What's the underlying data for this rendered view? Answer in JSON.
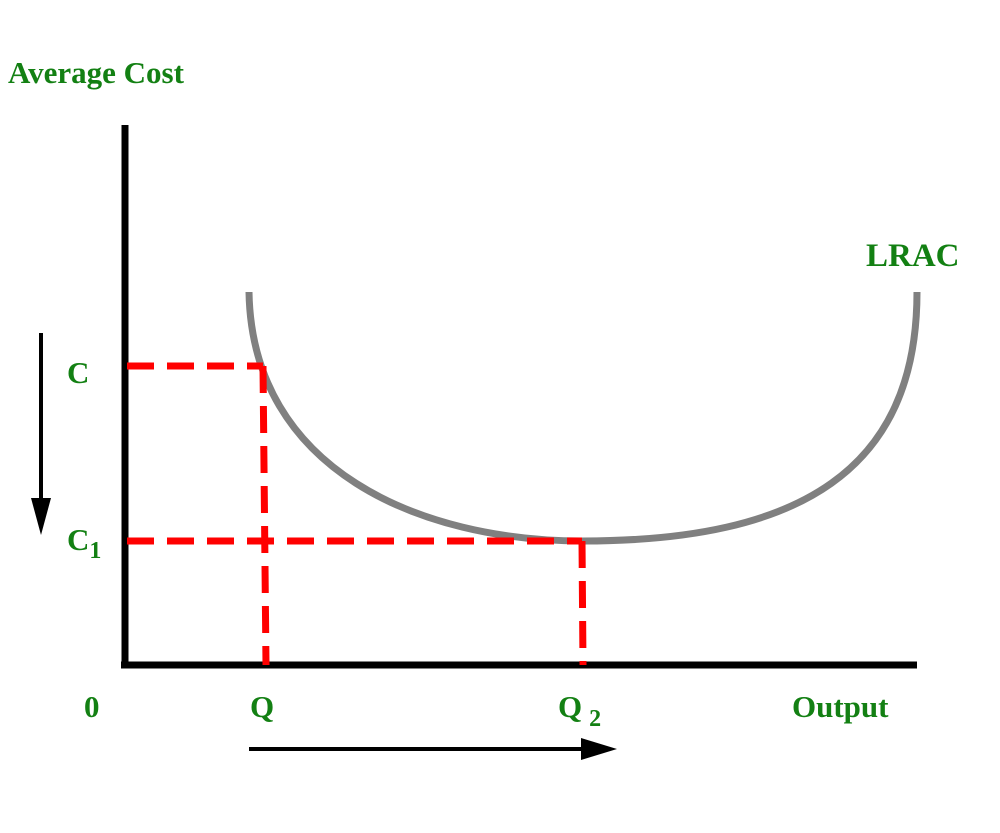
{
  "labels": {
    "y_axis": "Average Cost",
    "x_axis": "Output",
    "origin": "0",
    "curve": "LRAC",
    "cost_high": "C",
    "cost_low_base": "C",
    "cost_low_sub": "1",
    "quantity_low": "Q",
    "quantity_high_base": "Q",
    "quantity_high_sub": "2"
  },
  "colors": {
    "axis": "#000000",
    "curve": "#808080",
    "guides": "#ff0000",
    "text": "#138013"
  }
}
